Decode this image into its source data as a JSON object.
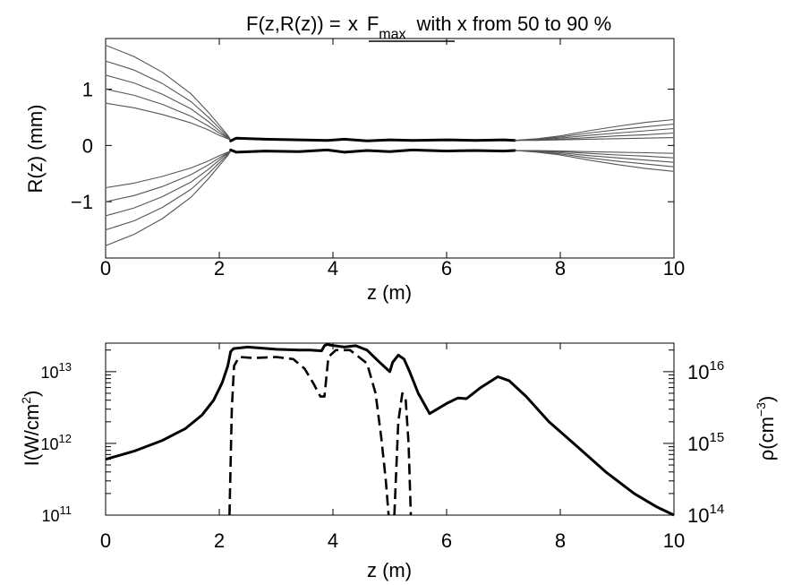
{
  "chart_data": [
    {
      "type": "line",
      "title": {
        "prefix": "F(z,R(z)) = ",
        "x_word": "x",
        "F": "F",
        "F_sub": "max",
        "suffix": "with x from 50 to 90 %"
      },
      "xlabel": "z (m)",
      "ylabel": "R(z) (mm)",
      "xlim": [
        0,
        10
      ],
      "ylim": [
        -2,
        1.9
      ],
      "xticks": [
        0,
        2,
        4,
        6,
        8,
        10
      ],
      "xtick_labels": [
        "0",
        "2",
        "4",
        "6",
        "8",
        "10"
      ],
      "yticks": [
        -1,
        0,
        1
      ],
      "ytick_labels": [
        "−1",
        "0",
        "1"
      ],
      "thin_color": "#555555",
      "series": [
        {
          "style": "thin",
          "x": [
            0,
            0.5,
            1,
            1.5,
            1.8,
            2.0,
            2.15,
            2.2
          ],
          "y": [
            1.78,
            1.58,
            1.3,
            0.92,
            0.6,
            0.36,
            0.18,
            0.1
          ]
        },
        {
          "style": "thin",
          "x": [
            0,
            0.5,
            1,
            1.5,
            1.8,
            2.0,
            2.15,
            2.2
          ],
          "y": [
            1.5,
            1.34,
            1.1,
            0.78,
            0.51,
            0.31,
            0.16,
            0.1
          ]
        },
        {
          "style": "thin",
          "x": [
            0,
            0.5,
            1,
            1.5,
            1.8,
            2.0,
            2.15,
            2.2
          ],
          "y": [
            1.25,
            1.11,
            0.91,
            0.65,
            0.43,
            0.26,
            0.14,
            0.1
          ]
        },
        {
          "style": "thin",
          "x": [
            0,
            0.5,
            1,
            1.5,
            1.8,
            2.0,
            2.15,
            2.2
          ],
          "y": [
            1.0,
            0.89,
            0.73,
            0.52,
            0.35,
            0.22,
            0.13,
            0.1
          ]
        },
        {
          "style": "thin",
          "x": [
            0,
            0.5,
            1,
            1.5,
            1.8,
            2.0,
            2.15,
            2.2
          ],
          "y": [
            0.75,
            0.67,
            0.55,
            0.4,
            0.28,
            0.18,
            0.12,
            0.1
          ]
        },
        {
          "style": "thin",
          "x": [
            0,
            0.5,
            1,
            1.5,
            1.8,
            2.0,
            2.15,
            2.2
          ],
          "y": [
            -0.75,
            -0.67,
            -0.55,
            -0.4,
            -0.28,
            -0.18,
            -0.12,
            -0.1
          ]
        },
        {
          "style": "thin",
          "x": [
            0,
            0.5,
            1,
            1.5,
            1.8,
            2.0,
            2.15,
            2.2
          ],
          "y": [
            -1.0,
            -0.89,
            -0.73,
            -0.52,
            -0.35,
            -0.22,
            -0.13,
            -0.1
          ]
        },
        {
          "style": "thin",
          "x": [
            0,
            0.5,
            1,
            1.5,
            1.8,
            2.0,
            2.15,
            2.2
          ],
          "y": [
            -1.25,
            -1.11,
            -0.91,
            -0.65,
            -0.43,
            -0.26,
            -0.14,
            -0.1
          ]
        },
        {
          "style": "thin",
          "x": [
            0,
            0.5,
            1,
            1.5,
            1.8,
            2.0,
            2.15,
            2.2
          ],
          "y": [
            -1.5,
            -1.34,
            -1.1,
            -0.78,
            -0.51,
            -0.31,
            -0.16,
            -0.1
          ]
        },
        {
          "style": "thin",
          "x": [
            0,
            0.5,
            1,
            1.5,
            1.8,
            2.0,
            2.15,
            2.2
          ],
          "y": [
            -1.78,
            -1.58,
            -1.3,
            -0.92,
            -0.6,
            -0.36,
            -0.18,
            -0.1
          ]
        },
        {
          "style": "thick",
          "x": [
            2.2,
            2.3,
            2.8,
            3.4,
            3.9,
            4.2,
            4.6,
            5.0,
            5.4,
            6.0,
            6.5,
            7.0,
            7.2
          ],
          "y": [
            0.08,
            0.13,
            0.11,
            0.1,
            0.09,
            0.11,
            0.08,
            0.1,
            0.09,
            0.1,
            0.09,
            0.1,
            0.09
          ]
        },
        {
          "style": "thick",
          "x": [
            2.2,
            2.3,
            2.8,
            3.4,
            3.9,
            4.2,
            4.6,
            5.0,
            5.4,
            6.0,
            6.5,
            7.0,
            7.2
          ],
          "y": [
            -0.08,
            -0.12,
            -0.1,
            -0.11,
            -0.08,
            -0.12,
            -0.09,
            -0.11,
            -0.08,
            -0.1,
            -0.09,
            -0.1,
            -0.09
          ]
        },
        {
          "style": "thin",
          "x": [
            7.2,
            7.6,
            8.0,
            8.5,
            9.0,
            9.5,
            10.0
          ],
          "y": [
            0.09,
            0.12,
            0.17,
            0.26,
            0.34,
            0.41,
            0.46
          ]
        },
        {
          "style": "thin",
          "x": [
            7.2,
            7.6,
            8.0,
            8.5,
            9.0,
            9.5,
            10.0
          ],
          "y": [
            0.09,
            0.11,
            0.15,
            0.22,
            0.28,
            0.33,
            0.38
          ]
        },
        {
          "style": "thin",
          "x": [
            7.2,
            7.6,
            8.0,
            8.5,
            9.0,
            9.5,
            10.0
          ],
          "y": [
            0.09,
            0.1,
            0.13,
            0.18,
            0.22,
            0.26,
            0.3
          ]
        },
        {
          "style": "thin",
          "x": [
            7.2,
            7.6,
            8.0,
            8.5,
            9.0,
            9.5,
            10.0
          ],
          "y": [
            0.09,
            0.1,
            0.11,
            0.14,
            0.17,
            0.19,
            0.22
          ]
        },
        {
          "style": "thin",
          "x": [
            7.2,
            7.6,
            8.0,
            8.5,
            9.0,
            9.5,
            10.0
          ],
          "y": [
            0.09,
            0.09,
            0.1,
            0.11,
            0.12,
            0.13,
            0.14
          ]
        },
        {
          "style": "thin",
          "x": [
            7.2,
            7.6,
            8.0,
            8.5,
            9.0,
            9.5,
            10.0
          ],
          "y": [
            -0.09,
            -0.09,
            -0.1,
            -0.11,
            -0.12,
            -0.13,
            -0.14
          ]
        },
        {
          "style": "thin",
          "x": [
            7.2,
            7.6,
            8.0,
            8.5,
            9.0,
            9.5,
            10.0
          ],
          "y": [
            -0.09,
            -0.1,
            -0.11,
            -0.14,
            -0.17,
            -0.19,
            -0.22
          ]
        },
        {
          "style": "thin",
          "x": [
            7.2,
            7.6,
            8.0,
            8.5,
            9.0,
            9.5,
            10.0
          ],
          "y": [
            -0.09,
            -0.1,
            -0.13,
            -0.18,
            -0.22,
            -0.26,
            -0.3
          ]
        },
        {
          "style": "thin",
          "x": [
            7.2,
            7.6,
            8.0,
            8.5,
            9.0,
            9.5,
            10.0
          ],
          "y": [
            -0.09,
            -0.11,
            -0.15,
            -0.22,
            -0.28,
            -0.33,
            -0.38
          ]
        },
        {
          "style": "thin",
          "x": [
            7.2,
            7.6,
            8.0,
            8.5,
            9.0,
            9.5,
            10.0
          ],
          "y": [
            -0.09,
            -0.12,
            -0.17,
            -0.26,
            -0.34,
            -0.41,
            -0.46
          ]
        }
      ]
    },
    {
      "type": "line",
      "xlabel": "z (m)",
      "ylabel": {
        "base": "I(W/cm",
        "sup": "2",
        "close": ")"
      },
      "ylabel_right": {
        "base": "ρ(cm",
        "sup": "−3",
        "close": ")"
      },
      "xlim": [
        0,
        10
      ],
      "ylim_log": [
        100000000000.0,
        25000000000000.0
      ],
      "ylim_right_log": [
        100000000000000.0,
        2.5e+16
      ],
      "y_log_scale": true,
      "xticks": [
        0,
        2,
        4,
        6,
        8,
        10
      ],
      "xtick_labels": [
        "0",
        "2",
        "4",
        "6",
        "8",
        "10"
      ],
      "yticks_left": [
        {
          "base": "10",
          "exp": "11",
          "value": 100000000000.0
        },
        {
          "base": "10",
          "exp": "12",
          "value": 1000000000000.0
        },
        {
          "base": "10",
          "exp": "13",
          "value": 10000000000000.0
        }
      ],
      "yticks_right": [
        {
          "base": "10",
          "exp": "14",
          "value": 100000000000000.0
        },
        {
          "base": "10",
          "exp": "15",
          "value": 1000000000000000.0
        },
        {
          "base": "10",
          "exp": "16",
          "value": 1e+16
        }
      ],
      "series": [
        {
          "style": "solid",
          "axis": "left",
          "x": [
            0,
            0.5,
            1.0,
            1.4,
            1.7,
            1.9,
            2.05,
            2.15,
            2.2,
            2.25,
            2.5,
            3.0,
            3.4,
            3.6,
            3.8,
            3.85,
            3.9,
            3.95,
            4.2,
            4.4,
            4.6,
            4.8,
            5.0,
            5.05,
            5.15,
            5.25,
            5.35,
            5.5,
            5.7,
            6.0,
            6.2,
            6.35,
            6.6,
            6.9,
            7.1,
            7.4,
            7.8,
            8.3,
            8.8,
            9.3,
            9.7,
            10.0
          ],
          "y": [
            600000000000.0,
            780000000000.0,
            1100000000000.0,
            1600000000000.0,
            2500000000000.0,
            4000000000000.0,
            7000000000000.0,
            12000000000000.0,
            19000000000000.0,
            21000000000000.0,
            22000000000000.0,
            20500000000000.0,
            20000000000000.0,
            20000000000000.0,
            19500000000000.0,
            23000000000000.0,
            24000000000000.0,
            23500000000000.0,
            22000000000000.0,
            23000000000000.0,
            20000000000000.0,
            14000000000000.0,
            10000000000000.0,
            13500000000000.0,
            17000000000000.0,
            15000000000000.0,
            10000000000000.0,
            5000000000000.0,
            2600000000000.0,
            3600000000000.0,
            4300000000000.0,
            4200000000000.0,
            6000000000000.0,
            8500000000000.0,
            7500000000000.0,
            4500000000000.0,
            2000000000000.0,
            900000000000.0,
            400000000000.0,
            200000000000.0,
            130000000000.0,
            100000000000.0
          ]
        },
        {
          "style": "dashed",
          "axis": "right",
          "x": [
            2.18,
            2.22,
            2.26,
            2.35,
            2.6,
            3.0,
            3.3,
            3.5,
            3.65,
            3.78,
            3.85,
            3.92,
            4.05,
            4.3,
            4.6,
            4.75,
            4.85,
            4.93,
            4.98
          ],
          "y": [
            100000000000000.0,
            3000000000000000.0,
            1.2e+16,
            1.6e+16,
            1.55e+16,
            1.6e+16,
            1.5e+16,
            1.1e+16,
            7000000000000000.0,
            4500000000000000.0,
            4500000000000000.0,
            1.6e+16,
            2e+16,
            2e+16,
            1.3e+16,
            5000000000000000.0,
            1200000000000000.0,
            300000000000000.0,
            100000000000000.0
          ]
        },
        {
          "style": "dashed",
          "axis": "right",
          "x": [
            5.08,
            5.15,
            5.22,
            5.28,
            5.33,
            5.37
          ],
          "y": [
            100000000000000.0,
            2000000000000000.0,
            5000000000000000.0,
            4000000000000000.0,
            1000000000000000.0,
            100000000000000.0
          ]
        }
      ]
    }
  ]
}
